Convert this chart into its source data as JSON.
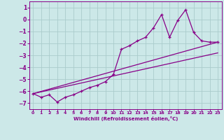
{
  "bg_color": "#cce8e8",
  "grid_color": "#aacccc",
  "line_color": "#880088",
  "xlabel": "Windchill (Refroidissement éolien,°C)",
  "xlim": [
    -0.5,
    23.5
  ],
  "ylim": [
    -7.5,
    1.5
  ],
  "yticks": [
    1,
    0,
    -1,
    -2,
    -3,
    -4,
    -5,
    -6,
    -7
  ],
  "xticks": [
    0,
    1,
    2,
    3,
    4,
    5,
    6,
    7,
    8,
    9,
    10,
    11,
    12,
    13,
    14,
    15,
    16,
    17,
    18,
    19,
    20,
    21,
    22,
    23
  ],
  "series1_x": [
    0,
    1,
    2,
    3,
    4,
    5,
    6,
    7,
    8,
    9,
    10,
    11,
    12,
    13,
    14,
    15,
    16,
    17,
    18,
    19,
    20,
    21,
    22,
    23
  ],
  "series1_y": [
    -6.2,
    -6.5,
    -6.3,
    -6.9,
    -6.5,
    -6.3,
    -6.0,
    -5.7,
    -5.5,
    -5.2,
    -4.6,
    -2.5,
    -2.2,
    -1.8,
    -1.5,
    -0.7,
    0.4,
    -1.5,
    -0.1,
    0.8,
    -1.1,
    -1.8,
    -1.9,
    -1.9
  ],
  "series2_x": [
    0,
    23
  ],
  "series2_y": [
    -6.2,
    -1.9
  ],
  "series3_x": [
    0,
    23
  ],
  "series3_y": [
    -6.2,
    -2.8
  ]
}
